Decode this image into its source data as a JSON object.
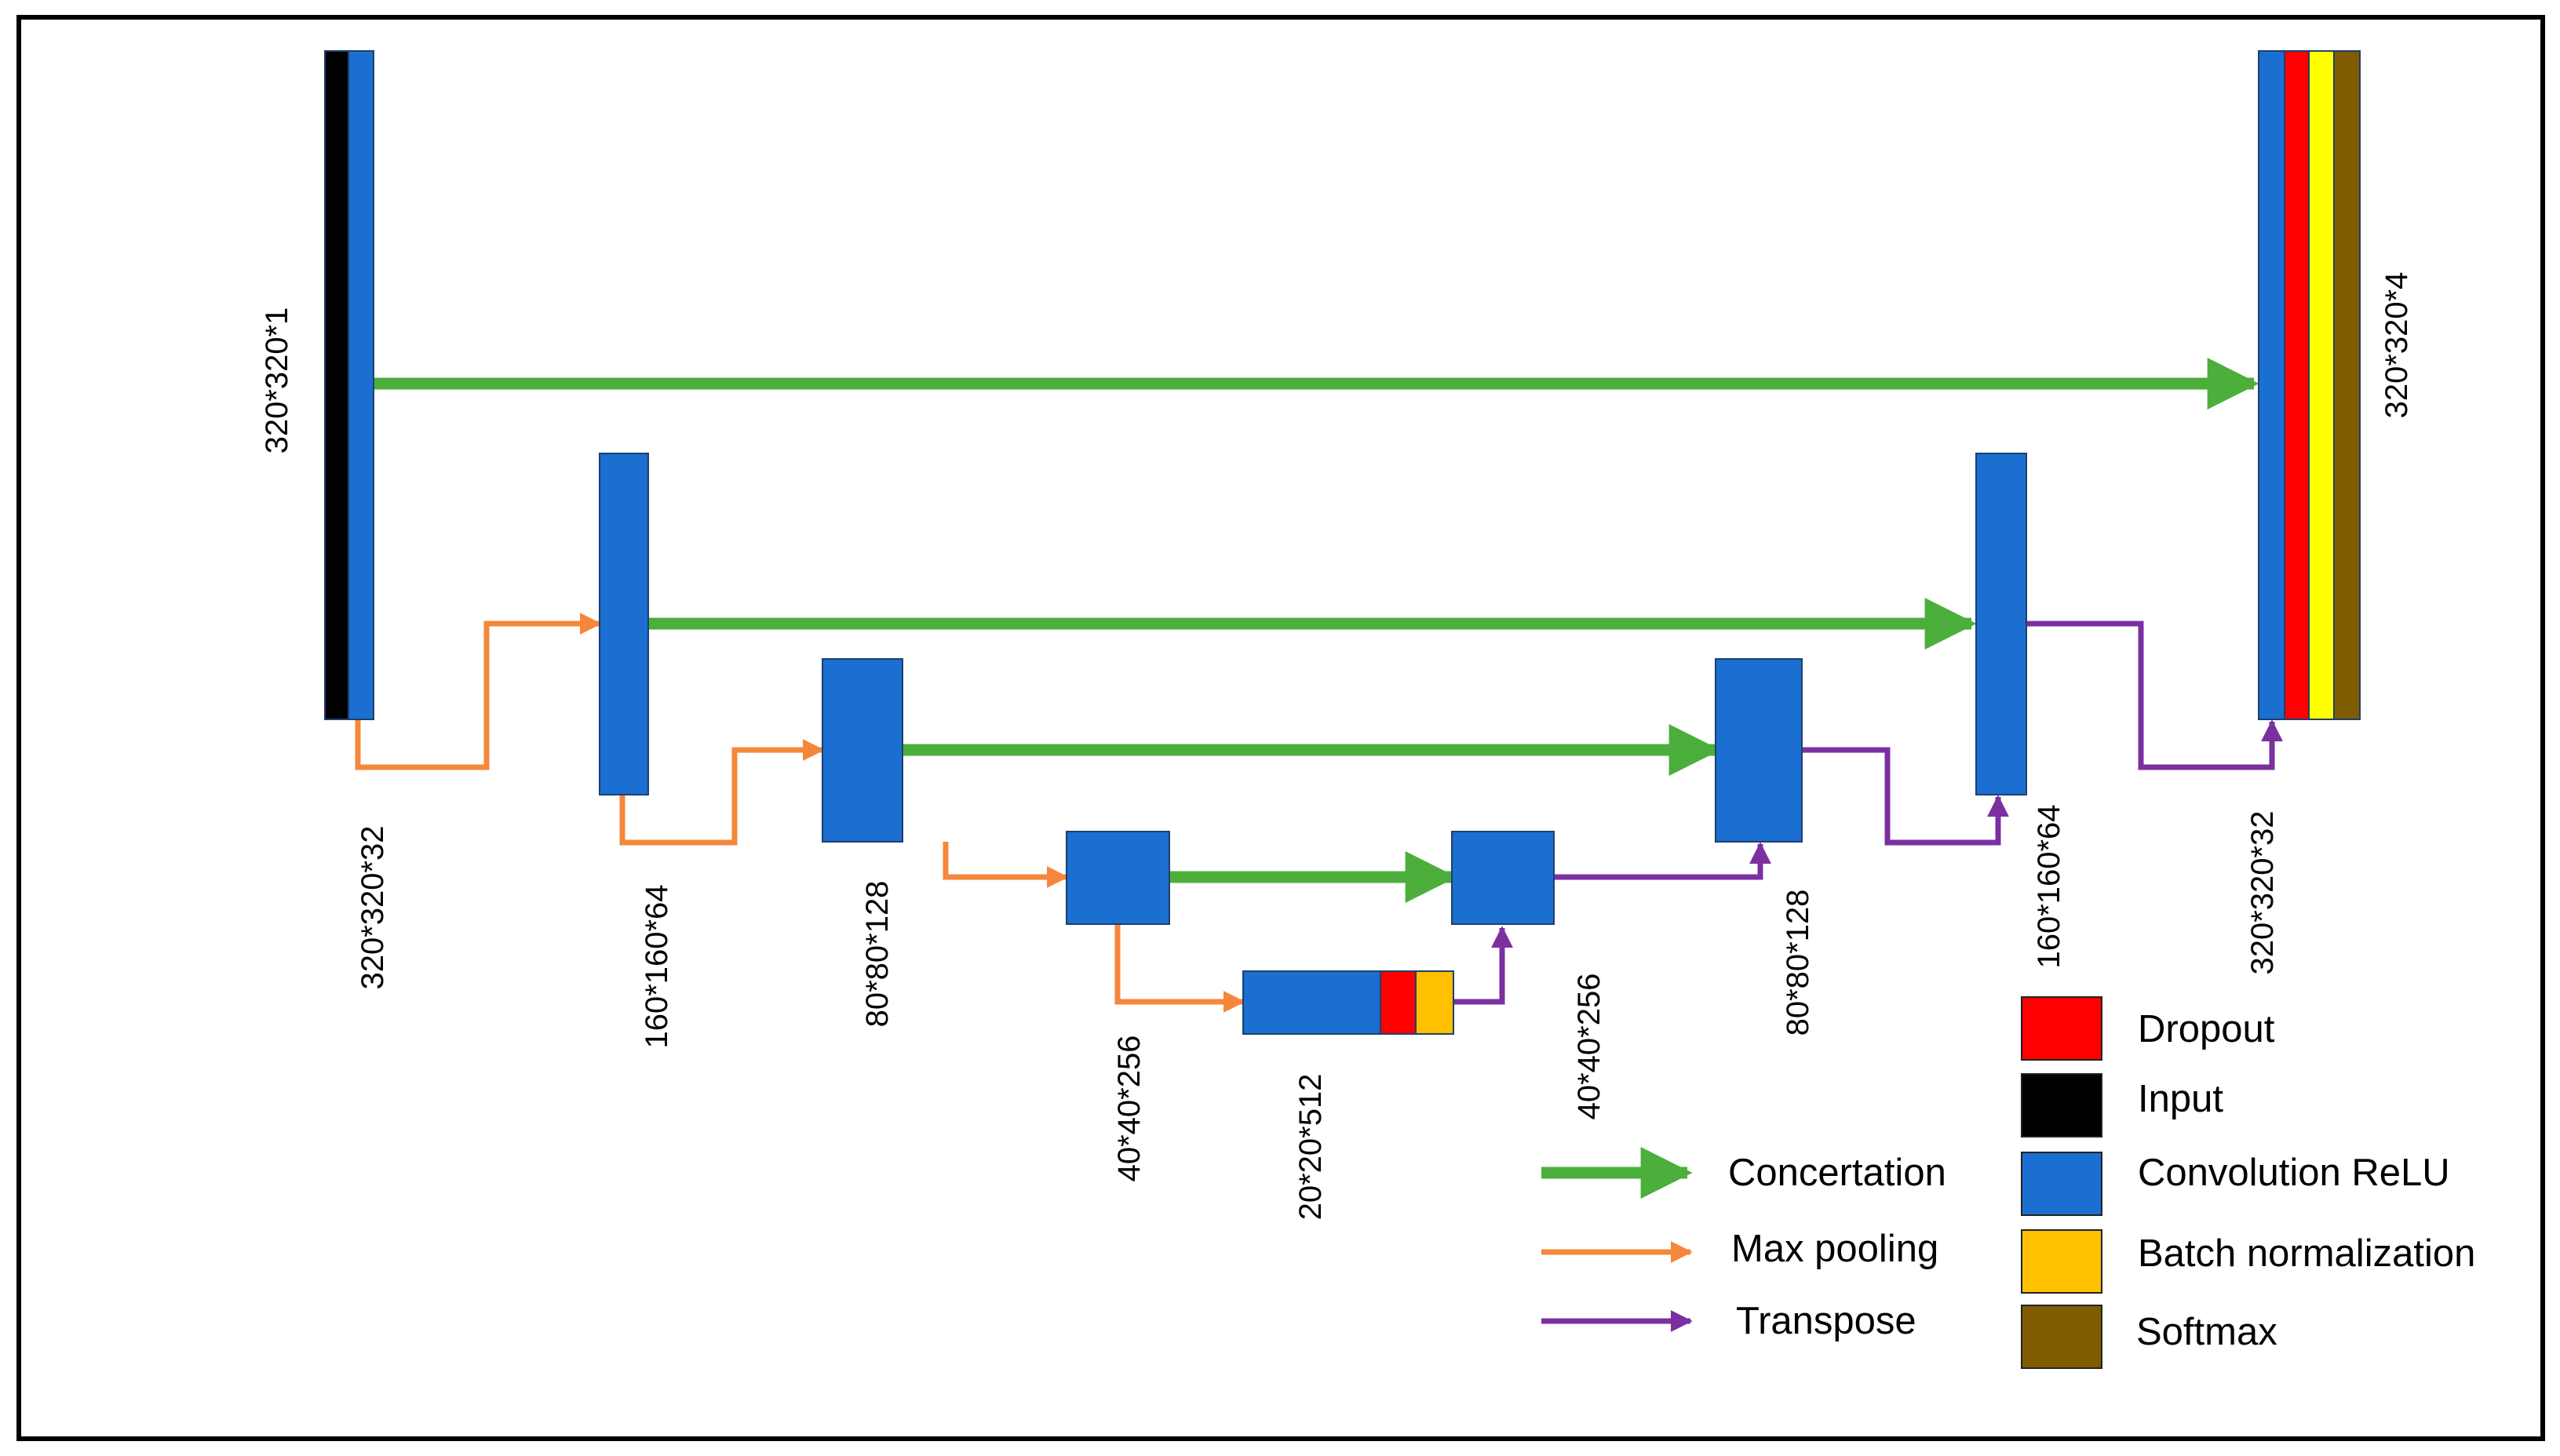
{
  "colors": {
    "concat": "#4caf3c",
    "maxpool": "#f5873a",
    "transpose": "#7a30a0",
    "conv": "#1a6fd0",
    "dropout": "#ff0000",
    "input": "#000000",
    "batchnorm": "#ffc000",
    "softmax": "#7f5c00",
    "yellow": "#ffff00",
    "frame": "#000000"
  },
  "dimensions": {
    "input": "320*320*1",
    "enc1": "320*320*32",
    "enc2": "160*160*64",
    "enc3": "80*80*128",
    "enc4": "40*40*256",
    "bottleneck": "20*20*512",
    "dec4": "40*40*256",
    "dec3": "80*80*128",
    "dec2": "160*160*64",
    "dec1": "320*320*32",
    "output": "320*320*4"
  },
  "legend": {
    "arrows": [
      {
        "key": "concat",
        "label": "Concertation"
      },
      {
        "key": "maxpool",
        "label": "Max pooling"
      },
      {
        "key": "transpose",
        "label": "Transpose"
      }
    ],
    "blocks": [
      {
        "key": "dropout",
        "label": "Dropout"
      },
      {
        "key": "input",
        "label": "Input"
      },
      {
        "key": "conv",
        "label": "Convolution ReLU"
      },
      {
        "key": "batchnorm",
        "label": "Batch normalization"
      },
      {
        "key": "softmax",
        "label": "Softmax"
      }
    ]
  }
}
